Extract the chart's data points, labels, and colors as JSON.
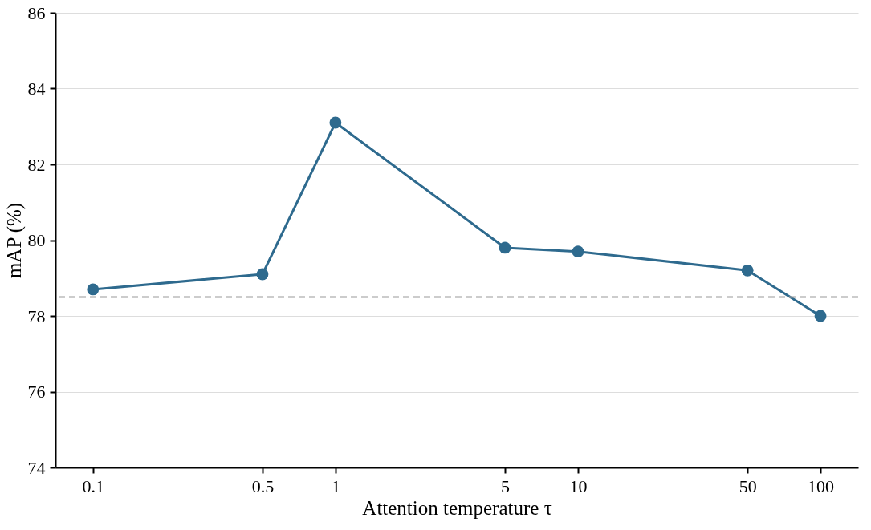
{
  "chart_data": {
    "type": "line",
    "xlabel": "Attention temperature τ",
    "ylabel": "mAP (%)",
    "x": [
      0.1,
      0.5,
      1,
      5,
      10,
      50,
      100
    ],
    "series": [
      {
        "color": "#2e6a8e",
        "values": [
          78.7,
          79.1,
          83.1,
          79.8,
          79.7,
          79.2,
          78.0
        ]
      }
    ],
    "log": "x",
    "xlim": [
      0.07,
      143
    ],
    "xticks": [
      0.1,
      0.5,
      1,
      5,
      10,
      50,
      100
    ],
    "ylim": [
      74,
      86
    ],
    "yticks": [
      74,
      76,
      78,
      80,
      82,
      84,
      86
    ],
    "grid": "y",
    "marker": "circle",
    "line_style": "solid",
    "ref_lines": [
      {
        "axis": "y",
        "value": 78.5,
        "color": "#999999",
        "line_style": "dashed"
      }
    ]
  }
}
